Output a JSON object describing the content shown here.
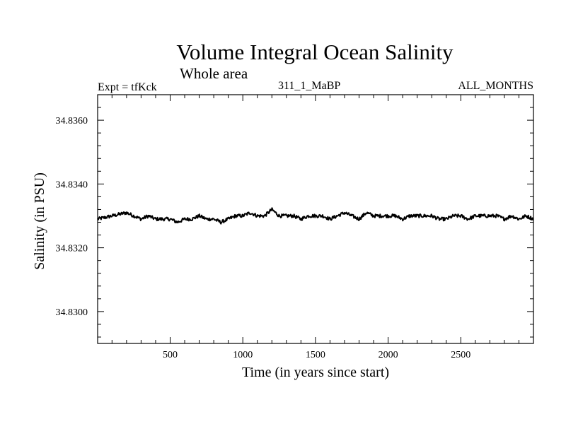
{
  "chart_data": {
    "type": "line",
    "title": "Volume Integral Ocean Salinity",
    "subtitle": "Whole area",
    "experiment_label": "Expt = tfKck",
    "run_label": "311_1_MaBP",
    "period_label": "ALL_MONTHS",
    "xlabel": "Time (in years since start)",
    "ylabel": "Salinity (in PSU)",
    "xlim": [
      1,
      3000
    ],
    "ylim": [
      34.829,
      34.8368
    ],
    "x_ticks": [
      500,
      1000,
      1500,
      2000,
      2500
    ],
    "y_ticks": [
      "34.8300",
      "34.8320",
      "34.8340",
      "34.8360"
    ],
    "grid": false,
    "series": [
      {
        "x": [
          1,
          100,
          200,
          250,
          300,
          350,
          400,
          450,
          500,
          550,
          600,
          650,
          700,
          750,
          800,
          850,
          900,
          950,
          1000,
          1050,
          1100,
          1150,
          1200,
          1250,
          1300,
          1350,
          1400,
          1450,
          1500,
          1550,
          1600,
          1650,
          1700,
          1750,
          1800,
          1850,
          1900,
          1950,
          2000,
          2050,
          2100,
          2150,
          2200,
          2250,
          2300,
          2350,
          2400,
          2450,
          2500,
          2550,
          2600,
          2650,
          2700,
          2750,
          2800,
          2850,
          2900,
          2950,
          3000
        ],
        "y": [
          34.8329,
          34.833,
          34.8331,
          34.833,
          34.8329,
          34.833,
          34.8329,
          34.8329,
          34.8329,
          34.8328,
          34.8329,
          34.8329,
          34.833,
          34.8329,
          34.8329,
          34.8328,
          34.8329,
          34.833,
          34.833,
          34.8331,
          34.833,
          34.833,
          34.8332,
          34.833,
          34.833,
          34.833,
          34.8329,
          34.833,
          34.833,
          34.833,
          34.8329,
          34.833,
          34.8331,
          34.833,
          34.8329,
          34.8331,
          34.833,
          34.833,
          34.833,
          34.833,
          34.8329,
          34.833,
          34.833,
          34.833,
          34.833,
          34.8329,
          34.8329,
          34.833,
          34.833,
          34.8329,
          34.833,
          34.833,
          34.833,
          34.833,
          34.8329,
          34.833,
          34.8329,
          34.833,
          34.8329
        ]
      }
    ]
  }
}
